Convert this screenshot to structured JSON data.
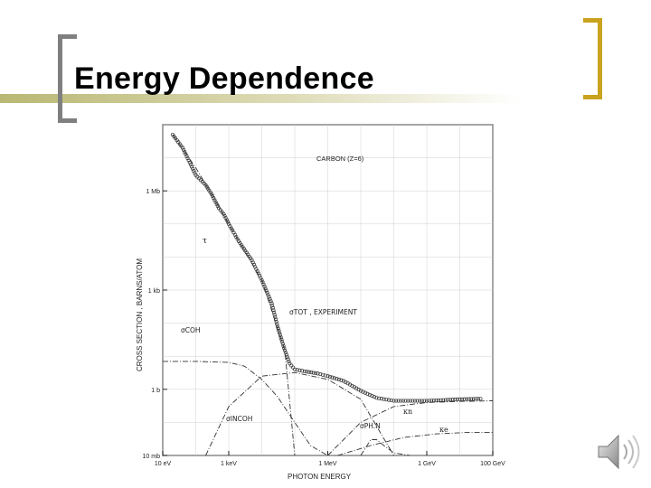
{
  "slide": {
    "title": "Energy Dependence"
  },
  "chart_data": {
    "type": "line",
    "annotation_main": "CARBON (Z=6)",
    "xlabel": "PHOTON ENERGY",
    "ylabel": "CROSS SECTION , BARNS/ATOM",
    "x_scale": "log",
    "y_scale": "log",
    "x_ticks": [
      {
        "label": "10 eV",
        "value": 10
      },
      {
        "label": "1 keV",
        "value": 1000
      },
      {
        "label": "1 MeV",
        "value": 1000000
      },
      {
        "label": "1 GeV",
        "value": 1000000000
      },
      {
        "label": "100 GeV",
        "value": 100000000000
      }
    ],
    "y_ticks": [
      {
        "label": "10 mb",
        "value": 0.01
      },
      {
        "label": "1 b",
        "value": 1
      },
      {
        "label": "1 kb",
        "value": 1000
      },
      {
        "label": "1 Mb",
        "value": 1000000
      }
    ],
    "xlim": [
      10,
      100000000000
    ],
    "ylim": [
      0.01,
      100000000
    ],
    "labels": {
      "tau": "τ",
      "sigma_tot": "σTOT , EXPERIMENT",
      "sigma_coh": "σCOH",
      "sigma_incoh": "σINCOH",
      "sigma_phn": "σPH.N",
      "kappa_n": "κn",
      "kappa_e": "κe"
    },
    "series": [
      {
        "name": "σTOT , EXPERIMENT",
        "style": "circles",
        "x": [
          20,
          40,
          100,
          200,
          300,
          500,
          700,
          1000,
          2000,
          5000,
          10000,
          20000,
          30000,
          50000,
          70000,
          100000,
          200000,
          500000,
          1000000,
          3000000,
          10000000,
          30000000,
          100000000,
          1000000000,
          10000000000,
          50000000000
        ],
        "y": [
          50000000,
          20000000,
          3000000,
          1500000,
          800000,
          300000,
          200000,
          100000,
          30000,
          8000,
          2000,
          400,
          80,
          15,
          6,
          4,
          3.5,
          3,
          2.5,
          1.8,
          0.9,
          0.55,
          0.45,
          0.45,
          0.5,
          0.52
        ]
      },
      {
        "name": "τ",
        "style": "dash-dot",
        "x": [
          20,
          100,
          300,
          1000,
          10000,
          50000,
          100000
        ],
        "y": [
          50000000,
          5000000,
          800000,
          100000,
          2000,
          15,
          0.01
        ]
      },
      {
        "name": "σCOH",
        "style": "dash-dot",
        "x": [
          10,
          100,
          1000,
          3000,
          10000,
          30000,
          100000,
          300000,
          1000000
        ],
        "y": [
          7,
          7,
          6.5,
          5,
          2,
          0.6,
          0.1,
          0.02,
          0.01
        ]
      },
      {
        "name": "σINCOH",
        "style": "dash-dot",
        "x": [
          200,
          1000,
          10000,
          100000,
          1000000,
          10000000,
          100000000
        ],
        "y": [
          0.01,
          0.3,
          2.5,
          3.2,
          2,
          0.5,
          0.01
        ]
      },
      {
        "name": "κn",
        "style": "dash-dot",
        "x": [
          1000000,
          10000000,
          100000000,
          1000000000,
          10000000000,
          100000000000
        ],
        "y": [
          0.01,
          0.1,
          0.3,
          0.4,
          0.43,
          0.45
        ]
      },
      {
        "name": "κe",
        "style": "dash-dot",
        "x": [
          2000000,
          20000000,
          200000000,
          2000000000,
          20000000000,
          100000000000
        ],
        "y": [
          0.01,
          0.02,
          0.035,
          0.045,
          0.05,
          0.05
        ]
      },
      {
        "name": "σPH.N",
        "style": "dash-dot",
        "x": [
          10000000,
          20000000,
          30000000,
          50000000,
          100000000,
          300000000
        ],
        "y": [
          0.01,
          0.03,
          0.03,
          0.02,
          0.012,
          0.01
        ]
      }
    ]
  },
  "icons": {
    "speaker": "speaker-sound-icon"
  }
}
